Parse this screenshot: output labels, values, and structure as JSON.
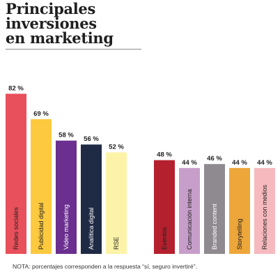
{
  "title_lines": [
    "Principales",
    "inversiones",
    "en marketing"
  ],
  "note": "NOTA: porcentajes corresponden a la respuesta “sí, seguro invertiré”.",
  "chart_data": {
    "type": "bar",
    "categories": [
      "Redes sociales",
      "Publicidad digital",
      "Video marketing",
      "Analítica digital",
      "RSE",
      "Eventos",
      "Comunicación interna",
      "Branded content",
      "Storytelling",
      "Relaciones con medios"
    ],
    "values": [
      82,
      69,
      58,
      56,
      52,
      48,
      44,
      46,
      44,
      44
    ],
    "data_labels": [
      "82 %",
      "69 %",
      "58 %",
      "56 %",
      "52 %",
      "48 %",
      "44 %",
      "46 %",
      "44 %",
      "44 %"
    ],
    "colors": [
      "#e8505b",
      "#fcc93f",
      "#6a2f8f",
      "#1f2a44",
      "#fcf3a8",
      "#b5202e",
      "#c79ec9",
      "#8e8a8f",
      "#eda63a",
      "#f5b9be"
    ],
    "label_colors": [
      "#1f1f1f",
      "#1f1f1f",
      "#ffffff",
      "#ffffff",
      "#1f1f1f",
      "#1f1f1f",
      "#1f1f1f",
      "#ffffff",
      "#1f1f1f",
      "#1f1f1f"
    ],
    "groups": [
      [
        0,
        1,
        2,
        3,
        4
      ],
      [
        5,
        6,
        7,
        8,
        9
      ]
    ],
    "ylim": [
      0,
      100
    ],
    "grid": false,
    "legend": "none",
    "title": "Principales inversiones en marketing",
    "xlabel": "",
    "ylabel": ""
  }
}
